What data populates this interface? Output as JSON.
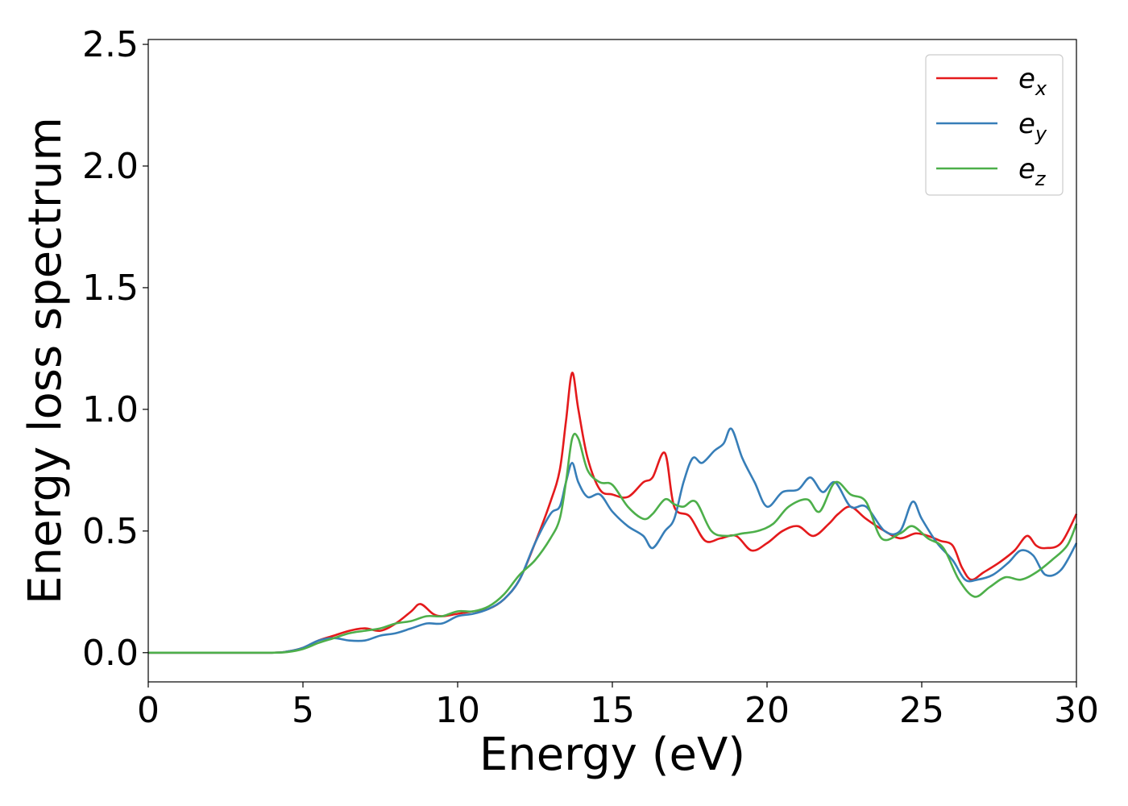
{
  "chart_data": {
    "type": "line",
    "xlabel": "Energy (eV)",
    "ylabel": "Energy loss spectrum",
    "xlim": [
      0,
      30
    ],
    "ylim": [
      -0.12,
      2.52
    ],
    "xticks": [
      "0",
      "5",
      "10",
      "15",
      "20",
      "25",
      "30"
    ],
    "yticks": [
      "0.0",
      "0.5",
      "1.0",
      "1.5",
      "2.0",
      "2.5"
    ],
    "grid": false,
    "legend_position": "top-right",
    "series": [
      {
        "name": "e_x",
        "legend_base": "e",
        "legend_sub": "x",
        "color": "#e41a1c",
        "x": [
          0,
          2,
          4,
          4.5,
          5,
          5.5,
          6,
          6.5,
          7,
          7.5,
          8,
          8.5,
          8.8,
          9.2,
          9.5,
          10,
          10.5,
          11,
          11.5,
          12,
          12.5,
          13,
          13.3,
          13.5,
          13.7,
          13.9,
          14.2,
          14.6,
          15,
          15.5,
          16,
          16.3,
          16.7,
          17,
          17.5,
          18,
          18.5,
          19,
          19.5,
          20,
          20.5,
          21,
          21.5,
          22,
          22.3,
          22.7,
          23.2,
          23.8,
          24.3,
          24.8,
          25.2,
          25.6,
          26,
          26.3,
          26.6,
          27,
          27.5,
          28,
          28.4,
          28.7,
          29,
          29.5,
          30
        ],
        "values": [
          0.0,
          0.0,
          0.0,
          0.005,
          0.02,
          0.05,
          0.07,
          0.09,
          0.1,
          0.09,
          0.12,
          0.17,
          0.2,
          0.16,
          0.15,
          0.16,
          0.17,
          0.18,
          0.22,
          0.3,
          0.45,
          0.62,
          0.75,
          0.95,
          1.15,
          1.0,
          0.8,
          0.67,
          0.65,
          0.64,
          0.7,
          0.72,
          0.82,
          0.6,
          0.56,
          0.46,
          0.47,
          0.48,
          0.42,
          0.45,
          0.5,
          0.52,
          0.48,
          0.53,
          0.57,
          0.6,
          0.55,
          0.5,
          0.47,
          0.49,
          0.48,
          0.46,
          0.44,
          0.35,
          0.3,
          0.33,
          0.37,
          0.42,
          0.48,
          0.44,
          0.43,
          0.45,
          0.57
        ]
      },
      {
        "name": "e_y",
        "legend_base": "e",
        "legend_sub": "y",
        "color": "#377eb8",
        "x": [
          0,
          2,
          4,
          4.5,
          5,
          5.5,
          6,
          6.5,
          7,
          7.5,
          8,
          8.5,
          9,
          9.5,
          10,
          10.5,
          11,
          11.5,
          12,
          12.5,
          13,
          13.3,
          13.5,
          13.7,
          13.9,
          14.2,
          14.6,
          15,
          15.5,
          16,
          16.3,
          16.7,
          17,
          17.3,
          17.6,
          17.9,
          18.3,
          18.6,
          18.85,
          19.2,
          19.6,
          20,
          20.5,
          21,
          21.4,
          21.8,
          22.2,
          22.7,
          23.2,
          23.8,
          24.3,
          24.7,
          25,
          25.5,
          26,
          26.4,
          26.8,
          27.3,
          27.8,
          28.2,
          28.6,
          29,
          29.5,
          30
        ],
        "values": [
          0.0,
          0.0,
          0.0,
          0.005,
          0.02,
          0.05,
          0.06,
          0.05,
          0.05,
          0.07,
          0.08,
          0.1,
          0.12,
          0.12,
          0.15,
          0.16,
          0.18,
          0.22,
          0.3,
          0.45,
          0.57,
          0.6,
          0.7,
          0.78,
          0.7,
          0.64,
          0.65,
          0.58,
          0.52,
          0.48,
          0.43,
          0.5,
          0.55,
          0.7,
          0.8,
          0.78,
          0.83,
          0.86,
          0.92,
          0.8,
          0.7,
          0.6,
          0.66,
          0.67,
          0.72,
          0.66,
          0.7,
          0.6,
          0.6,
          0.5,
          0.5,
          0.62,
          0.55,
          0.45,
          0.38,
          0.3,
          0.3,
          0.32,
          0.37,
          0.42,
          0.4,
          0.32,
          0.34,
          0.45
        ]
      },
      {
        "name": "e_z",
        "legend_base": "e",
        "legend_sub": "z",
        "color": "#4daf4a",
        "x": [
          0,
          2,
          4,
          4.5,
          5,
          5.5,
          6,
          6.5,
          7,
          7.5,
          8,
          8.5,
          9,
          9.5,
          10,
          10.5,
          11,
          11.5,
          12,
          12.5,
          13,
          13.3,
          13.5,
          13.7,
          13.9,
          14.2,
          14.6,
          15,
          15.5,
          16,
          16.3,
          16.7,
          17,
          17.3,
          17.7,
          18.2,
          18.7,
          19.2,
          19.7,
          20.2,
          20.7,
          21.3,
          21.7,
          22.2,
          22.7,
          23.2,
          23.7,
          24.3,
          24.7,
          25.2,
          25.7,
          26.2,
          26.7,
          27.2,
          27.7,
          28.2,
          28.7,
          29.2,
          29.7,
          30
        ],
        "values": [
          0.0,
          0.0,
          0.0,
          0.003,
          0.015,
          0.04,
          0.06,
          0.08,
          0.09,
          0.1,
          0.12,
          0.13,
          0.15,
          0.15,
          0.17,
          0.17,
          0.19,
          0.24,
          0.32,
          0.38,
          0.47,
          0.55,
          0.7,
          0.88,
          0.88,
          0.75,
          0.7,
          0.69,
          0.6,
          0.55,
          0.57,
          0.63,
          0.61,
          0.6,
          0.62,
          0.5,
          0.48,
          0.49,
          0.5,
          0.53,
          0.6,
          0.63,
          0.58,
          0.7,
          0.65,
          0.62,
          0.47,
          0.49,
          0.52,
          0.47,
          0.43,
          0.3,
          0.23,
          0.27,
          0.31,
          0.3,
          0.33,
          0.38,
          0.44,
          0.53
        ]
      }
    ]
  }
}
